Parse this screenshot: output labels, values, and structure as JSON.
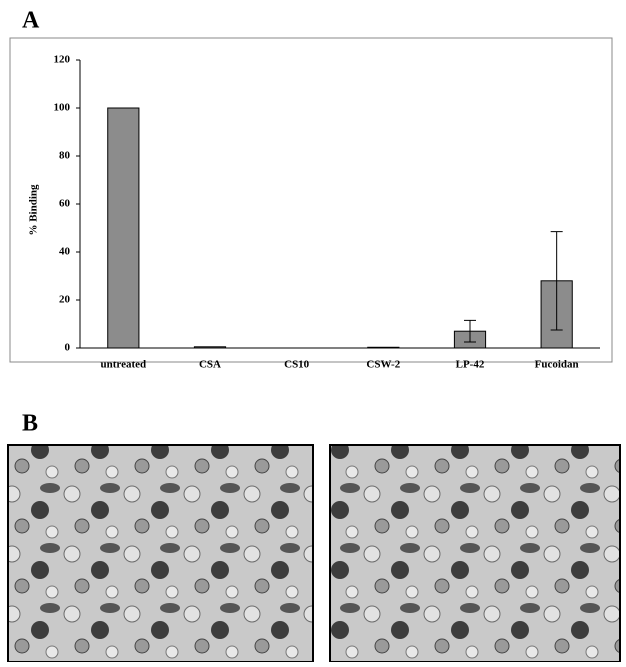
{
  "panel_labels": [
    "A",
    "B"
  ],
  "chart_data": {
    "type": "bar",
    "ylabel": "% Binding",
    "categories": [
      "untreated",
      "CSA",
      "CS10",
      "CSW-2",
      "LP-42",
      "Fucoidan"
    ],
    "values": [
      100,
      0.5,
      0,
      0.3,
      7,
      28
    ],
    "errors": [
      0,
      0,
      0,
      0,
      4.5,
      20.5
    ],
    "color": "#8c8c8c",
    "ylim": [
      0,
      120
    ],
    "yticks": [
      0,
      20,
      40,
      60,
      80,
      100,
      120
    ],
    "grid": false
  }
}
